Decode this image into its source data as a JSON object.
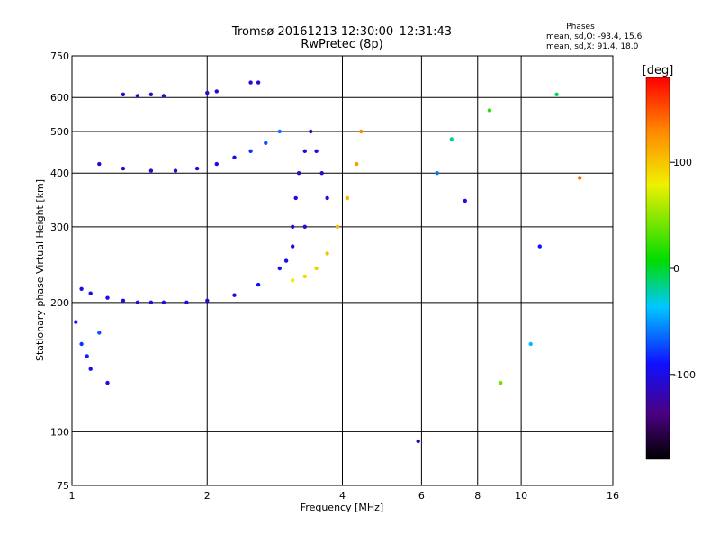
{
  "chart_data": {
    "type": "scatter",
    "title": "Tromsø 20161213 12:30:00–12:31:43",
    "subtitle": "RwPretec (8p)",
    "xlabel": "Frequency [MHz]",
    "ylabel": "Stationary phase Virtual Height [km]",
    "x_scale": "log",
    "y_scale": "log",
    "xlim": [
      1,
      16
    ],
    "ylim": [
      75,
      750
    ],
    "x_ticks": [
      1,
      2,
      4,
      6,
      8,
      10,
      16
    ],
    "x_tick_labels": [
      "1",
      "2",
      "4",
      "6",
      "8",
      "10",
      "16"
    ],
    "y_ticks": [
      75,
      100,
      200,
      300,
      400,
      500,
      600,
      750
    ],
    "y_tick_labels": [
      "75",
      "100",
      "200",
      "300",
      "400",
      "500",
      "600",
      "750"
    ],
    "grid": true,
    "stats": {
      "heading": "Phases",
      "line_o": "mean, sd,O: -93.4, 15.6",
      "line_x": "mean, sd,X:  91.4, 18.0"
    },
    "colorbar": {
      "label": "[deg]",
      "range": [
        -180,
        180
      ],
      "ticks": [
        100,
        0,
        -100
      ],
      "tick_labels": [
        "100",
        "0",
        "-100"
      ],
      "colormap": "rainbow (black-purple-blue-cyan-green-yellow-red)"
    },
    "series": [
      {
        "description_key": "o_mode_lower_trace",
        "x": [
          1.05,
          1.1,
          1.2,
          1.3,
          1.4,
          1.5,
          1.6,
          1.8,
          2.0,
          2.3,
          2.6,
          2.9,
          3.1,
          3.3
        ],
        "y": [
          215,
          210,
          205,
          202,
          200,
          200,
          200,
          200,
          202,
          208,
          220,
          240,
          270,
          300
        ],
        "phase": [
          -100,
          -100,
          -100,
          -100,
          -100,
          -100,
          -100,
          -100,
          -100,
          -100,
          -95,
          -90,
          -100,
          -105
        ]
      },
      {
        "description_key": "o_mode_upper_cusp",
        "x": [
          3.0,
          3.1,
          3.15,
          3.2,
          3.3,
          3.4,
          3.5,
          3.6,
          3.7
        ],
        "y": [
          250,
          300,
          350,
          400,
          450,
          500,
          450,
          400,
          350
        ],
        "phase": [
          -100,
          -105,
          -105,
          -110,
          -110,
          -110,
          -105,
          -105,
          -100
        ]
      },
      {
        "description_key": "x_mode_trace",
        "x": [
          3.1,
          3.3,
          3.5,
          3.7,
          3.9,
          4.1,
          4.3,
          4.4
        ],
        "y": [
          225,
          230,
          240,
          260,
          300,
          350,
          420,
          500
        ],
        "phase": [
          80,
          90,
          95,
          100,
          105,
          110,
          120,
          130
        ]
      },
      {
        "description_key": "multiple_reflection",
        "x": [
          1.15,
          1.3,
          1.5,
          1.7,
          1.9,
          2.1,
          2.3,
          2.5,
          2.7,
          2.9
        ],
        "y": [
          420,
          410,
          405,
          405,
          410,
          420,
          435,
          450,
          470,
          500
        ],
        "phase": [
          -110,
          -110,
          -105,
          -105,
          -100,
          -100,
          -95,
          -80,
          -70,
          -60
        ]
      },
      {
        "description_key": "high_echoes",
        "x": [
          1.3,
          1.4,
          1.5,
          1.6,
          2.0,
          2.1,
          2.5,
          2.6
        ],
        "y": [
          610,
          605,
          610,
          605,
          615,
          620,
          650,
          650
        ],
        "phase": [
          -110,
          -110,
          -110,
          -110,
          -110,
          -110,
          -105,
          -105
        ]
      },
      {
        "description_key": "low_scatter",
        "x": [
          1.02,
          1.05,
          1.08,
          1.1,
          1.15,
          1.2
        ],
        "y": [
          180,
          160,
          150,
          140,
          170,
          130
        ],
        "phase": [
          -90,
          -80,
          -85,
          -95,
          -70,
          -100
        ]
      },
      {
        "description_key": "sparse_noise",
        "x": [
          5.9,
          6.5,
          7.0,
          7.5,
          8.5,
          9.0,
          10.5,
          11.0,
          12.0,
          13.5
        ],
        "y": [
          95,
          400,
          480,
          345,
          560,
          130,
          160,
          270,
          610,
          390
        ],
        "phase": [
          -120,
          -60,
          -20,
          -100,
          20,
          40,
          -40,
          -90,
          -10,
          140
        ]
      }
    ]
  }
}
